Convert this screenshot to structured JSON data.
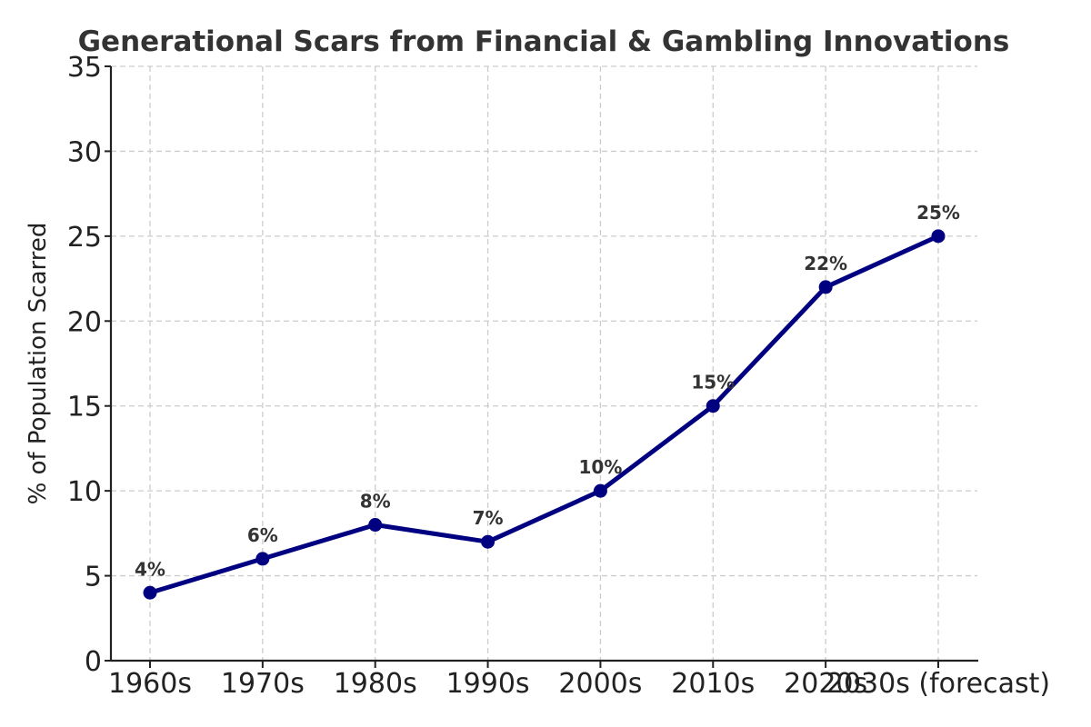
{
  "chart_data": {
    "type": "line",
    "title": "Generational Scars from Financial & Gambling Innovations",
    "xlabel": "",
    "ylabel": "% of Population Scarred",
    "categories": [
      "1960s",
      "1970s",
      "1980s",
      "1990s",
      "2000s",
      "2010s",
      "2020s",
      "2030s (forecast)"
    ],
    "series": [
      {
        "name": "% of Population Scarred",
        "values": [
          4,
          6,
          8,
          7,
          10,
          15,
          22,
          25
        ],
        "color": "#000080",
        "marker": "circle"
      }
    ],
    "data_labels": [
      "4%",
      "6%",
      "8%",
      "7%",
      "10%",
      "15%",
      "22%",
      "25%"
    ],
    "yticks": [
      0,
      5,
      10,
      15,
      20,
      25,
      30,
      35
    ],
    "ylim": [
      0,
      35
    ],
    "grid": true,
    "legend": null
  }
}
